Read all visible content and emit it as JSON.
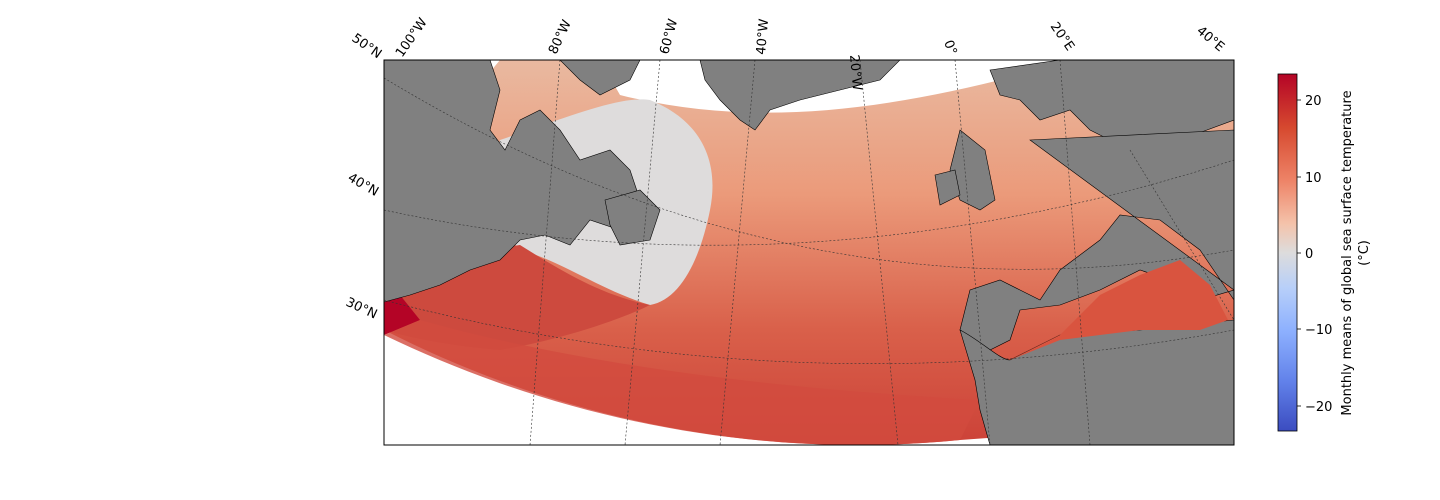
{
  "map": {
    "lon_labels": [
      "100°W",
      "80°W",
      "60°W",
      "40°W",
      "20°W",
      "0°",
      "20°E",
      "40°E"
    ],
    "lat_labels": [
      "50°N",
      "40°N",
      "30°N"
    ],
    "land_color": "#808080",
    "ocean_color": "#ffffff",
    "gridline_style": "dotted"
  },
  "colorbar": {
    "label_line1": "Monthly means of global sea surface temperature",
    "label_line2": "(°C)",
    "colormap": "coolwarm",
    "ticks": [
      "20",
      "10",
      "0",
      "−10",
      "−20"
    ],
    "range": [
      -23.5,
      23.5
    ],
    "color_top": "#b40426",
    "color_mid": "#dddcdc",
    "color_bottom": "#3b4cc0"
  }
}
